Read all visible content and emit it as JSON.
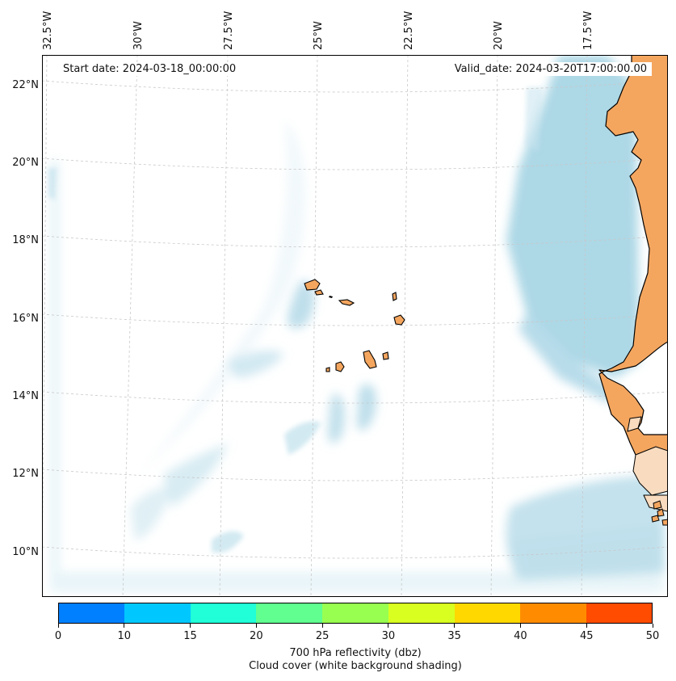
{
  "map": {
    "start_date": "Start date: 2024-03-18_00:00:00",
    "valid_date": "Valid_date: 2024-03-20T17:00:00.00",
    "lon_ticks": [
      "32.5°W",
      "30°W",
      "27.5°W",
      "25°W",
      "22.5°W",
      "20°W",
      "17.5°W"
    ],
    "lat_ticks": [
      "22°N",
      "20°N",
      "18°N",
      "16°N",
      "14°N",
      "12°N",
      "10°N"
    ],
    "grid": true,
    "projection": "Lambert conformal (curved graticule)",
    "colors": {
      "land": "#f4a65f",
      "cloud": "#add8e6",
      "coastline": "#000000",
      "gridline": "#c8c8c8"
    }
  },
  "colorbar": {
    "tick_labels": [
      "0",
      "10",
      "15",
      "20",
      "25",
      "30",
      "35",
      "40",
      "45",
      "50"
    ],
    "colors": [
      "#0080ff",
      "#00c8ff",
      "#20ffd8",
      "#60ff90",
      "#98ff50",
      "#d8ff20",
      "#ffd800",
      "#ff8c00",
      "#ff4c00"
    ],
    "title_line1": "700 hPa reflectivity (dbz)",
    "title_line2": "Cloud cover (white background shading)"
  }
}
